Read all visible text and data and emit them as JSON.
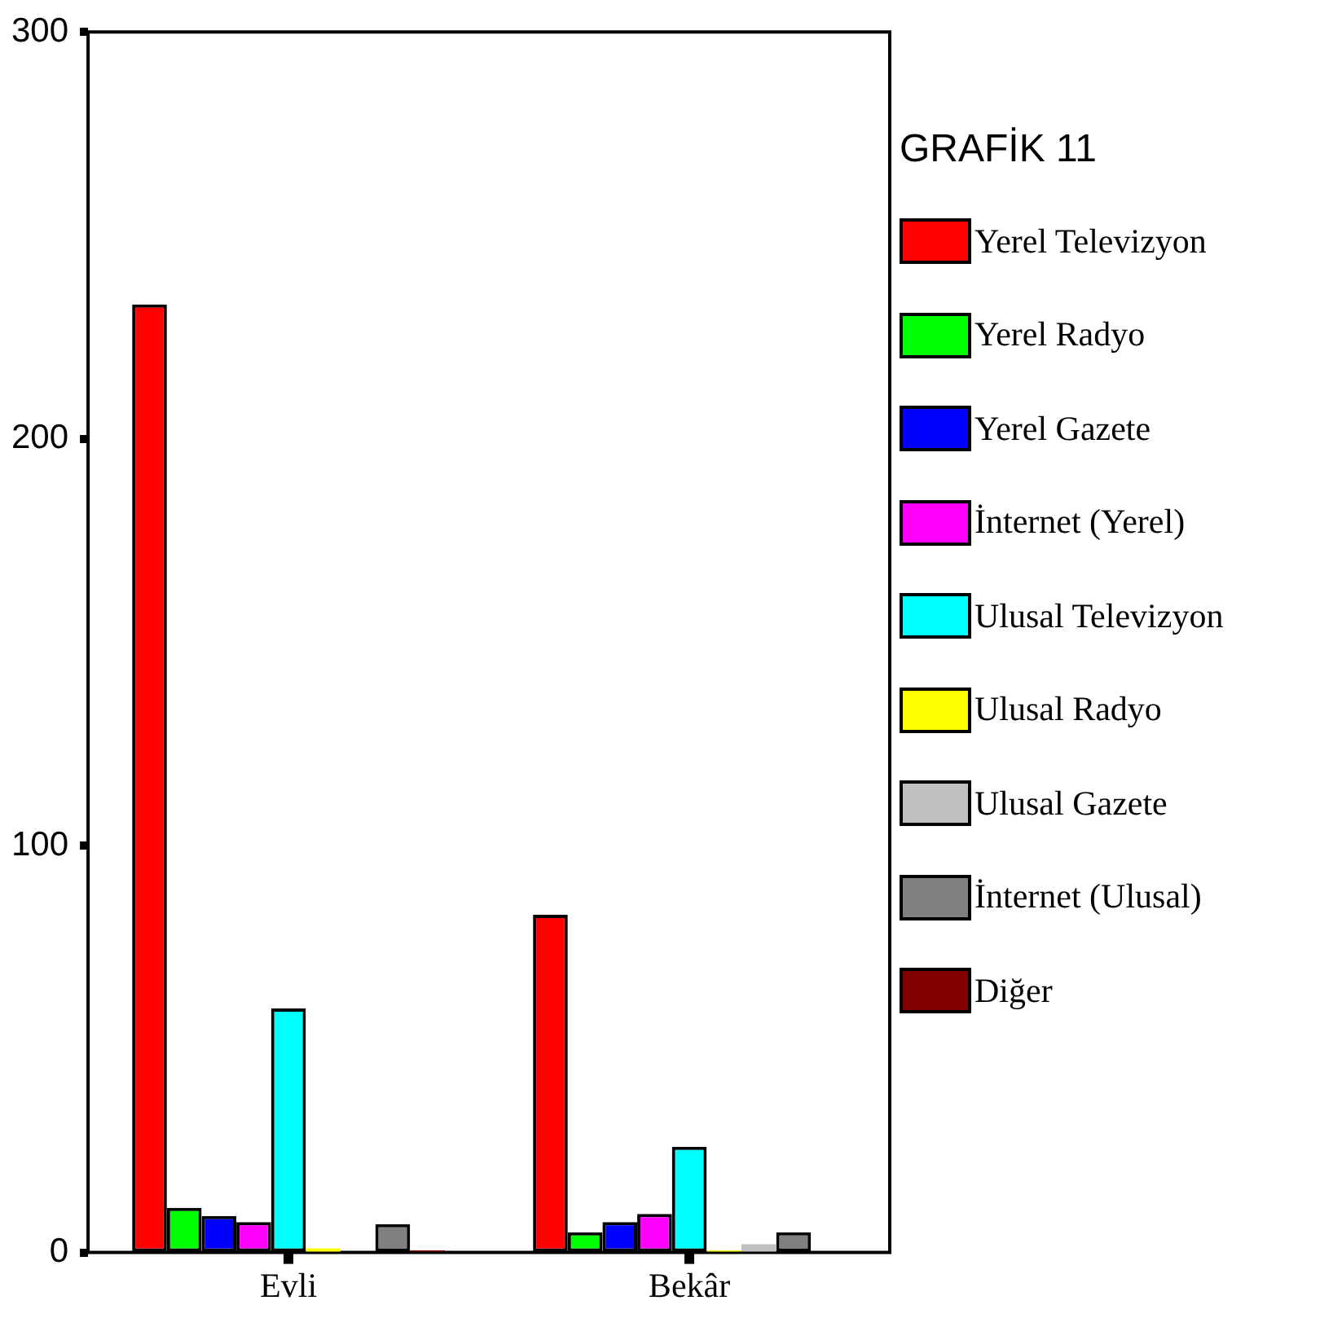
{
  "chart_data": {
    "type": "bar",
    "legend_title": "GRAFİK 11",
    "categories": [
      "Evli",
      "Bekâr"
    ],
    "series": [
      {
        "name": "Yerel Televizyon",
        "color": "#ff0000",
        "values": [
          233,
          83
        ]
      },
      {
        "name": "Yerel Radyo",
        "color": "#00ff00",
        "values": [
          11,
          5
        ]
      },
      {
        "name": "Yerel Gazete",
        "color": "#0000ff",
        "values": [
          9,
          7.5
        ]
      },
      {
        "name": "İnternet (Yerel)",
        "color": "#ff00ff",
        "values": [
          7.5,
          9.5
        ]
      },
      {
        "name": "Ulusal Televizyon",
        "color": "#00ffff",
        "values": [
          60,
          26
        ]
      },
      {
        "name": "Ulusal Radyo",
        "color": "#ffff00",
        "values": [
          1,
          0.5
        ]
      },
      {
        "name": "Ulusal Gazete",
        "color": "#c0c0c0",
        "values": [
          0,
          2
        ]
      },
      {
        "name": "İnternet (Ulusal)",
        "color": "#808080",
        "values": [
          7,
          5
        ]
      },
      {
        "name": "Diğer",
        "color": "#800000",
        "values": [
          0.5,
          0
        ]
      }
    ],
    "ylim": [
      0,
      300
    ],
    "yticks": [
      0,
      100,
      200,
      300
    ],
    "grid": false,
    "legend": "right"
  }
}
